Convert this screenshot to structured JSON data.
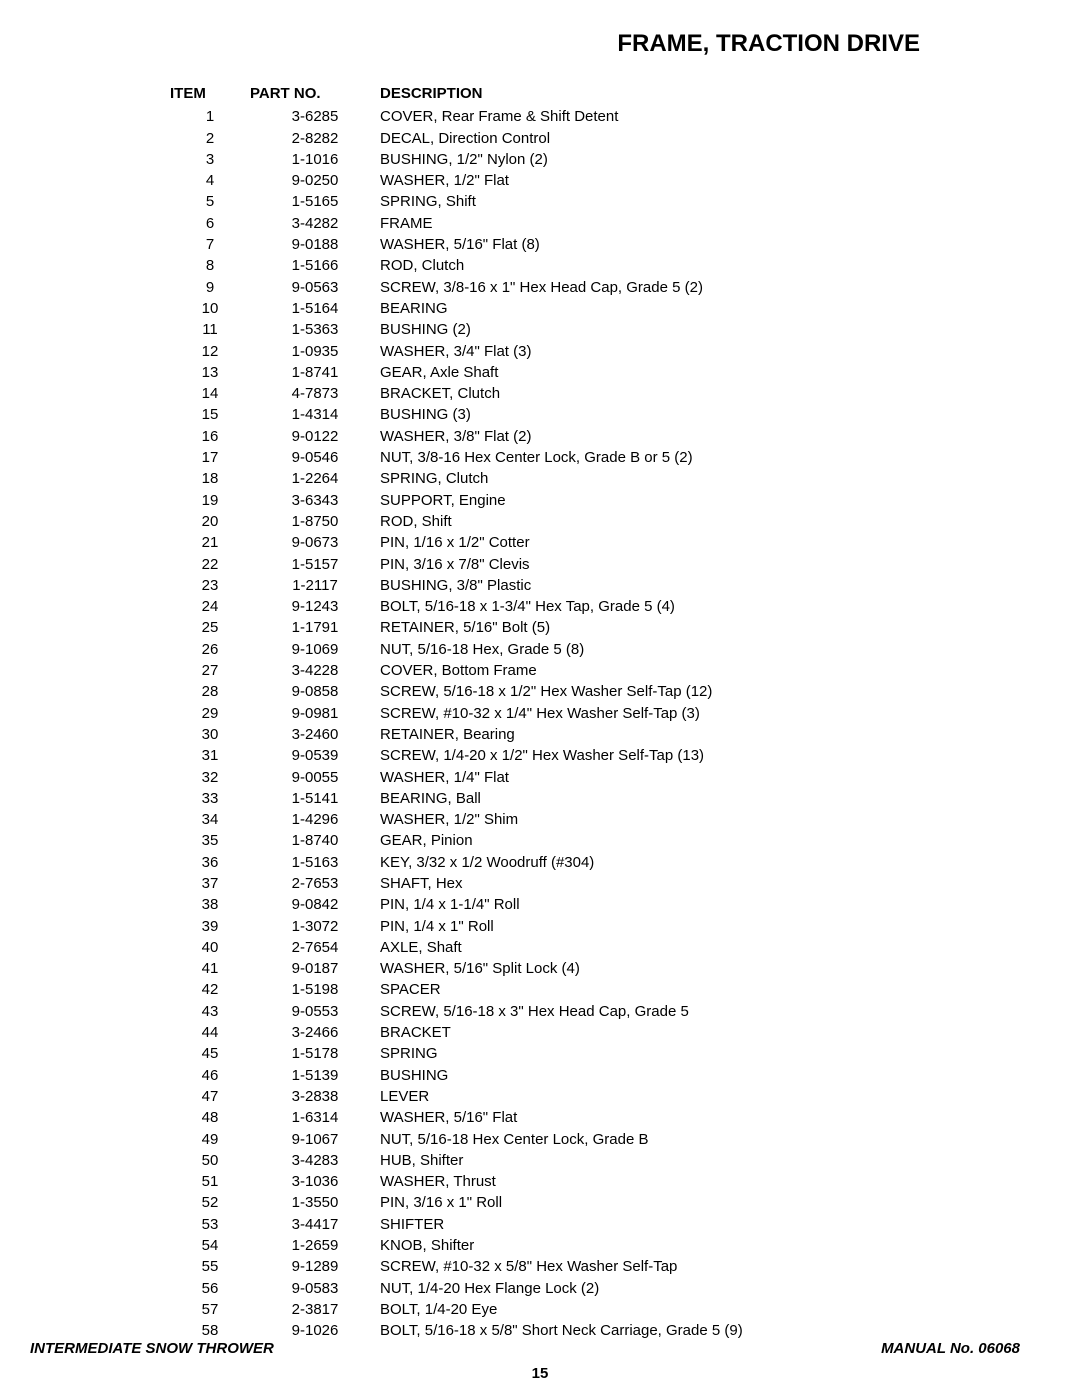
{
  "title": "FRAME, TRACTION DRIVE",
  "headers": {
    "item": "ITEM",
    "partno": "PART NO.",
    "desc": "DESCRIPTION"
  },
  "rows": [
    {
      "item": "1",
      "partno": "3-6285",
      "desc": "COVER, Rear Frame & Shift Detent"
    },
    {
      "item": "2",
      "partno": "2-8282",
      "desc": "DECAL, Direction Control"
    },
    {
      "item": "3",
      "partno": "1-1016",
      "desc": "BUSHING, 1/2\" Nylon (2)"
    },
    {
      "item": "4",
      "partno": "9-0250",
      "desc": "WASHER, 1/2\" Flat"
    },
    {
      "item": "5",
      "partno": "1-5165",
      "desc": "SPRING, Shift"
    },
    {
      "item": "6",
      "partno": "3-4282",
      "desc": "FRAME"
    },
    {
      "item": "7",
      "partno": "9-0188",
      "desc": "WASHER, 5/16\" Flat (8)"
    },
    {
      "item": "8",
      "partno": "1-5166",
      "desc": "ROD, Clutch"
    },
    {
      "item": "9",
      "partno": "9-0563",
      "desc": "SCREW, 3/8-16 x 1\" Hex Head Cap, Grade 5 (2)"
    },
    {
      "item": "10",
      "partno": "1-5164",
      "desc": "BEARING"
    },
    {
      "item": "11",
      "partno": "1-5363",
      "desc": "BUSHING (2)"
    },
    {
      "item": "12",
      "partno": "1-0935",
      "desc": "WASHER, 3/4\" Flat (3)"
    },
    {
      "item": "13",
      "partno": "1-8741",
      "desc": "GEAR, Axle Shaft"
    },
    {
      "item": "14",
      "partno": "4-7873",
      "desc": "BRACKET, Clutch"
    },
    {
      "item": "15",
      "partno": "1-4314",
      "desc": "BUSHING (3)"
    },
    {
      "item": "16",
      "partno": "9-0122",
      "desc": "WASHER, 3/8\" Flat (2)"
    },
    {
      "item": "17",
      "partno": "9-0546",
      "desc": "NUT, 3/8-16 Hex Center Lock, Grade B or 5 (2)"
    },
    {
      "item": "18",
      "partno": "1-2264",
      "desc": "SPRING, Clutch"
    },
    {
      "item": "19",
      "partno": "3-6343",
      "desc": "SUPPORT, Engine"
    },
    {
      "item": "20",
      "partno": "1-8750",
      "desc": "ROD, Shift"
    },
    {
      "item": "21",
      "partno": "9-0673",
      "desc": "PIN, 1/16 x 1/2\" Cotter"
    },
    {
      "item": "22",
      "partno": "1-5157",
      "desc": "PIN, 3/16 x 7/8\" Clevis"
    },
    {
      "item": "23",
      "partno": "1-2117",
      "desc": "BUSHING, 3/8\" Plastic"
    },
    {
      "item": "24",
      "partno": "9-1243",
      "desc": "BOLT, 5/16-18 x 1-3/4\" Hex Tap, Grade 5 (4)"
    },
    {
      "item": "25",
      "partno": "1-1791",
      "desc": "RETAINER, 5/16\" Bolt (5)"
    },
    {
      "item": "26",
      "partno": "9-1069",
      "desc": "NUT, 5/16-18 Hex, Grade 5 (8)"
    },
    {
      "item": "27",
      "partno": "3-4228",
      "desc": "COVER, Bottom Frame"
    },
    {
      "item": "28",
      "partno": "9-0858",
      "desc": "SCREW, 5/16-18 x 1/2\" Hex Washer Self-Tap (12)"
    },
    {
      "item": "29",
      "partno": "9-0981",
      "desc": "SCREW, #10-32 x 1/4\" Hex Washer Self-Tap (3)"
    },
    {
      "item": "30",
      "partno": "3-2460",
      "desc": "RETAINER, Bearing"
    },
    {
      "item": "31",
      "partno": "9-0539",
      "desc": "SCREW, 1/4-20 x 1/2\" Hex Washer Self-Tap (13)"
    },
    {
      "item": "32",
      "partno": "9-0055",
      "desc": "WASHER, 1/4\" Flat"
    },
    {
      "item": "33",
      "partno": "1-5141",
      "desc": "BEARING, Ball"
    },
    {
      "item": "34",
      "partno": "1-4296",
      "desc": "WASHER, 1/2\" Shim"
    },
    {
      "item": "35",
      "partno": "1-8740",
      "desc": "GEAR, Pinion"
    },
    {
      "item": "36",
      "partno": "1-5163",
      "desc": "KEY, 3/32 x 1/2 Woodruff (#304)"
    },
    {
      "item": "37",
      "partno": "2-7653",
      "desc": "SHAFT, Hex"
    },
    {
      "item": "38",
      "partno": "9-0842",
      "desc": "PIN, 1/4 x 1-1/4\" Roll"
    },
    {
      "item": "39",
      "partno": "1-3072",
      "desc": "PIN, 1/4 x 1\" Roll"
    },
    {
      "item": "40",
      "partno": "2-7654",
      "desc": "AXLE, Shaft"
    },
    {
      "item": "41",
      "partno": "9-0187",
      "desc": "WASHER, 5/16\" Split Lock (4)"
    },
    {
      "item": "42",
      "partno": "1-5198",
      "desc": "SPACER"
    },
    {
      "item": "43",
      "partno": "9-0553",
      "desc": "SCREW, 5/16-18 x 3\" Hex Head Cap, Grade 5"
    },
    {
      "item": "44",
      "partno": "3-2466",
      "desc": "BRACKET"
    },
    {
      "item": "45",
      "partno": "1-5178",
      "desc": "SPRING"
    },
    {
      "item": "46",
      "partno": "1-5139",
      "desc": "BUSHING"
    },
    {
      "item": "47",
      "partno": "3-2838",
      "desc": "LEVER"
    },
    {
      "item": "48",
      "partno": "1-6314",
      "desc": "WASHER, 5/16\" Flat"
    },
    {
      "item": "49",
      "partno": "9-1067",
      "desc": "NUT, 5/16-18 Hex Center Lock, Grade B"
    },
    {
      "item": "50",
      "partno": "3-4283",
      "desc": "HUB, Shifter"
    },
    {
      "item": "51",
      "partno": "3-1036",
      "desc": "WASHER, Thrust"
    },
    {
      "item": "52",
      "partno": "1-3550",
      "desc": "PIN, 3/16 x 1\" Roll"
    },
    {
      "item": "53",
      "partno": "3-4417",
      "desc": "SHIFTER"
    },
    {
      "item": "54",
      "partno": "1-2659",
      "desc": "KNOB, Shifter"
    },
    {
      "item": "55",
      "partno": "9-1289",
      "desc": "SCREW, #10-32 x 5/8\" Hex Washer Self-Tap"
    },
    {
      "item": "56",
      "partno": "9-0583",
      "desc": "NUT, 1/4-20 Hex Flange Lock (2)"
    },
    {
      "item": "57",
      "partno": "2-3817",
      "desc": "BOLT, 1/4-20 Eye"
    },
    {
      "item": "58",
      "partno": "9-1026",
      "desc": "BOLT, 5/16-18 x 5/8\" Short Neck Carriage, Grade 5 (9)"
    }
  ],
  "footer": {
    "left": "INTERMEDIATE SNOW THROWER",
    "right": "MANUAL No. 06068"
  },
  "page_number": "15"
}
